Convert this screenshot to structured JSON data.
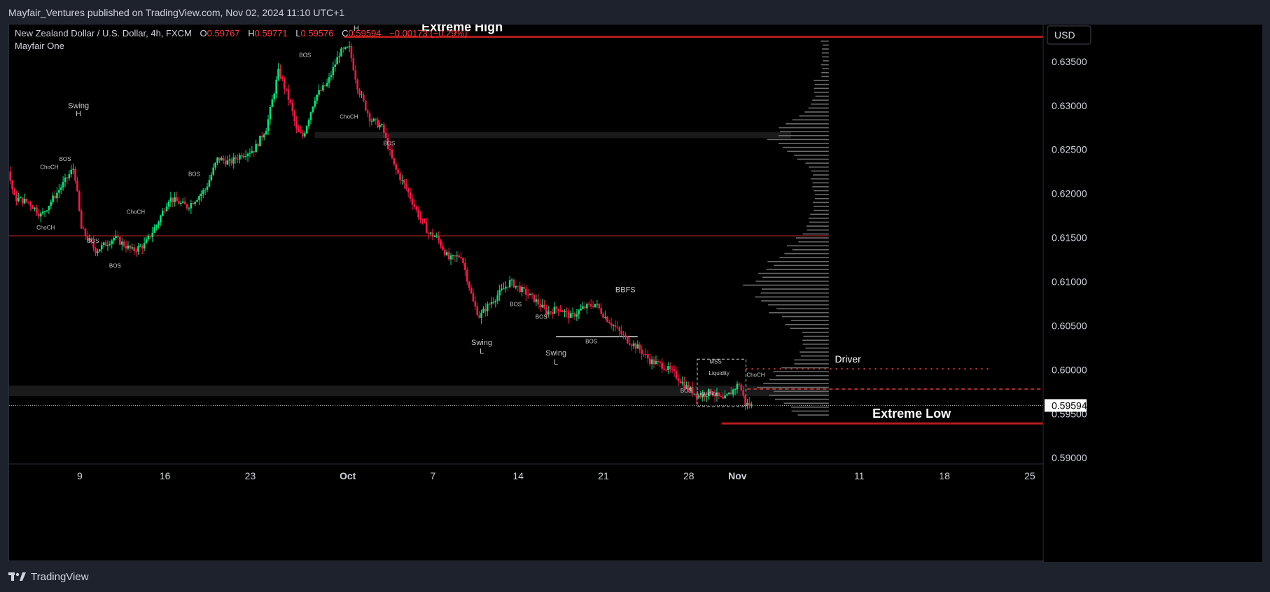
{
  "publisher_line": "Mayfair_Ventures published on TradingView.com, Nov 02, 2024 11:10 UTC+1",
  "footer": {
    "brand": "TradingView"
  },
  "legend": {
    "symbol": "New Zealand Dollar / U.S. Dollar, 4h, FXCM",
    "o_label": "O",
    "o_value": "0.59767",
    "h_label": "H",
    "h_value": "0.59771",
    "l_label": "L",
    "l_value": "0.59576",
    "c_label": "C",
    "c_value": "0.59594",
    "change": "−0.00173 (−0.29%)",
    "indicator": "Mayfair One"
  },
  "currency_button": "USD",
  "last_price_label": "0.59594",
  "colors": {
    "bull": "#00e676",
    "bear": "#ff1744",
    "level": "#b71c1c",
    "volume": "#6b6b6b",
    "text_red": "#ff3b3b"
  },
  "chart_data": {
    "type": "candlestick",
    "symbol": "NZDUSD",
    "timeframe": "4h",
    "y_axis": {
      "ticks": [
        0.59,
        0.595,
        0.6,
        0.605,
        0.61,
        0.615,
        0.62,
        0.625,
        0.63,
        0.635
      ],
      "tick_labels": [
        "0.59000",
        "0.59500",
        "0.60000",
        "0.60500",
        "0.61000",
        "0.61500",
        "0.62000",
        "0.62500",
        "0.63000",
        "0.63500"
      ],
      "range": [
        0.5893,
        0.6392
      ]
    },
    "x_axis": {
      "tick_labels": [
        {
          "label": "9",
          "day": 9
        },
        {
          "label": "16",
          "day": 16
        },
        {
          "label": "23",
          "day": 23
        },
        {
          "label": "Oct",
          "day": 31
        },
        {
          "label": "7",
          "day": 38
        },
        {
          "label": "14",
          "day": 45
        },
        {
          "label": "21",
          "day": 52
        },
        {
          "label": "28",
          "day": 59
        },
        {
          "label": "Nov",
          "day": 63
        },
        {
          "label": "11",
          "day": 73
        },
        {
          "label": "18",
          "day": 80
        },
        {
          "label": "25",
          "day": 87
        }
      ],
      "range": [
        3.2,
        88.1
      ]
    },
    "price_path": [
      [
        3.3,
        0.6225
      ],
      [
        3.8,
        0.6195
      ],
      [
        5,
        0.619
      ],
      [
        6,
        0.6175
      ],
      [
        7,
        0.6195
      ],
      [
        8,
        0.6215
      ],
      [
        8.7,
        0.623
      ],
      [
        9.3,
        0.616
      ],
      [
        10.5,
        0.6135
      ],
      [
        12,
        0.615
      ],
      [
        13.5,
        0.6135
      ],
      [
        14.5,
        0.6142
      ],
      [
        15.5,
        0.6165
      ],
      [
        16.5,
        0.6195
      ],
      [
        18,
        0.6185
      ],
      [
        19.5,
        0.6205
      ],
      [
        20.5,
        0.624
      ],
      [
        21.5,
        0.6235
      ],
      [
        22.5,
        0.6245
      ],
      [
        23.5,
        0.625
      ],
      [
        24.5,
        0.6275
      ],
      [
        25.5,
        0.634
      ],
      [
        26.5,
        0.63
      ],
      [
        27,
        0.627
      ],
      [
        27.5,
        0.6265
      ],
      [
        28.5,
        0.631
      ],
      [
        29.5,
        0.6325
      ],
      [
        30.5,
        0.636
      ],
      [
        31.3,
        0.6365
      ],
      [
        32,
        0.632
      ],
      [
        33,
        0.6285
      ],
      [
        34,
        0.6275
      ],
      [
        35,
        0.623
      ],
      [
        36,
        0.6205
      ],
      [
        37,
        0.6175
      ],
      [
        37.8,
        0.6155
      ],
      [
        38.5,
        0.615
      ],
      [
        39.5,
        0.6125
      ],
      [
        40.5,
        0.613
      ],
      [
        41.5,
        0.6075
      ],
      [
        42,
        0.606
      ],
      [
        42.5,
        0.607
      ],
      [
        43.5,
        0.6085
      ],
      [
        44.5,
        0.61
      ],
      [
        45.5,
        0.609
      ],
      [
        46.5,
        0.608
      ],
      [
        47.5,
        0.6065
      ],
      [
        48.5,
        0.607
      ],
      [
        49.5,
        0.606
      ],
      [
        50.5,
        0.607
      ],
      [
        51.5,
        0.6075
      ],
      [
        52.3,
        0.606
      ],
      [
        53,
        0.605
      ],
      [
        54,
        0.6035
      ],
      [
        55,
        0.6025
      ],
      [
        56,
        0.601
      ],
      [
        57,
        0.6005
      ],
      [
        58,
        0.5995
      ],
      [
        59,
        0.598
      ],
      [
        60,
        0.597
      ],
      [
        61,
        0.5975
      ],
      [
        62,
        0.5965
      ],
      [
        62.7,
        0.5975
      ],
      [
        63.3,
        0.5985
      ],
      [
        63.8,
        0.5962
      ],
      [
        64.2,
        0.59594
      ]
    ],
    "high": 0.63771,
    "low": 0.59576,
    "levels": [
      {
        "name": "Extreme High",
        "price": 0.6378,
        "x_from": 30.7,
        "x_to": 88.1
      },
      {
        "name": "Extreme Low",
        "price": 0.5939,
        "x_from": 61.7,
        "x_to": 88.1
      },
      {
        "name": "Driver",
        "price": 0.6001,
        "style": "dotted",
        "x_from": 63.7,
        "x_to": 83.7
      },
      {
        "name": "",
        "price": 0.5978,
        "style": "dashed",
        "x_from": 63.8,
        "x_to": 88.1
      },
      {
        "name": "",
        "price": 0.6152,
        "style": "thin",
        "x_from": 3.2,
        "x_to": 70.5
      },
      {
        "name": "",
        "price": 0.59594,
        "style": "dotted-white",
        "x_from": 3.2,
        "x_to": 88.1
      }
    ],
    "zones": [
      {
        "x_from": 28.3,
        "x_to": 67.4,
        "p_from": 0.6263,
        "p_to": 0.627
      },
      {
        "x_from": 3.2,
        "x_to": 70.5,
        "p_from": 0.597,
        "p_to": 0.5982
      }
    ],
    "volume_profile": {
      "x_base": 70.5,
      "p_from": 0.5948,
      "p_to": 0.6377
    },
    "annotations": [
      {
        "text": "Swing",
        "x": 8.9,
        "price": 0.6297,
        "size": "mid"
      },
      {
        "text": "H",
        "x": 8.9,
        "price": 0.6288,
        "size": "mid"
      },
      {
        "text": "H",
        "x": 31.7,
        "price": 0.6385,
        "size": "mid"
      },
      {
        "text": "BOS",
        "x": 27.5,
        "price": 0.6355,
        "size": "small"
      },
      {
        "text": "ChoCH",
        "x": 6.5,
        "price": 0.6228,
        "size": "small"
      },
      {
        "text": "BOS",
        "x": 7.8,
        "price": 0.6237,
        "size": "small"
      },
      {
        "text": "ChoCH",
        "x": 6.2,
        "price": 0.6159,
        "size": "small"
      },
      {
        "text": "BOS",
        "x": 10.1,
        "price": 0.6144,
        "size": "small"
      },
      {
        "text": "ChoCH",
        "x": 13.6,
        "price": 0.6177,
        "size": "small"
      },
      {
        "text": "BOS",
        "x": 11.9,
        "price": 0.6116,
        "size": "small"
      },
      {
        "text": "BOS",
        "x": 18.4,
        "price": 0.622,
        "size": "small"
      },
      {
        "text": "ChoCH",
        "x": 31.1,
        "price": 0.6285,
        "size": "small"
      },
      {
        "text": "BOS",
        "x": 34.4,
        "price": 0.6255,
        "size": "small"
      },
      {
        "text": "BOS",
        "x": 44.8,
        "price": 0.6072,
        "size": "small"
      },
      {
        "text": "BOS",
        "x": 46.9,
        "price": 0.6058,
        "size": "small"
      },
      {
        "text": "BOS",
        "x": 51.0,
        "price": 0.603,
        "size": "small"
      },
      {
        "text": "BBFS",
        "x": 53.8,
        "price": 0.6088,
        "size": "mid"
      },
      {
        "text": "Swing",
        "x": 42.0,
        "price": 0.6028,
        "size": "mid"
      },
      {
        "text": "L",
        "x": 42.0,
        "price": 0.6018,
        "size": "mid"
      },
      {
        "text": "Swing",
        "x": 48.1,
        "price": 0.6016,
        "size": "mid"
      },
      {
        "text": "L",
        "x": 48.1,
        "price": 0.6006,
        "size": "mid"
      },
      {
        "text": "MSS",
        "x": 61.2,
        "price": 0.6007,
        "size": "small"
      },
      {
        "text": "Liquidity",
        "x": 61.5,
        "price": 0.5994,
        "size": "small"
      },
      {
        "text": "ChoCH",
        "x": 64.5,
        "price": 0.5992,
        "size": "small"
      },
      {
        "text": "BOS",
        "x": 58.8,
        "price": 0.5974,
        "size": "small"
      },
      {
        "text": "Liquidity",
        "x": 60.5,
        "price": 0.5971,
        "size": "small"
      }
    ]
  }
}
